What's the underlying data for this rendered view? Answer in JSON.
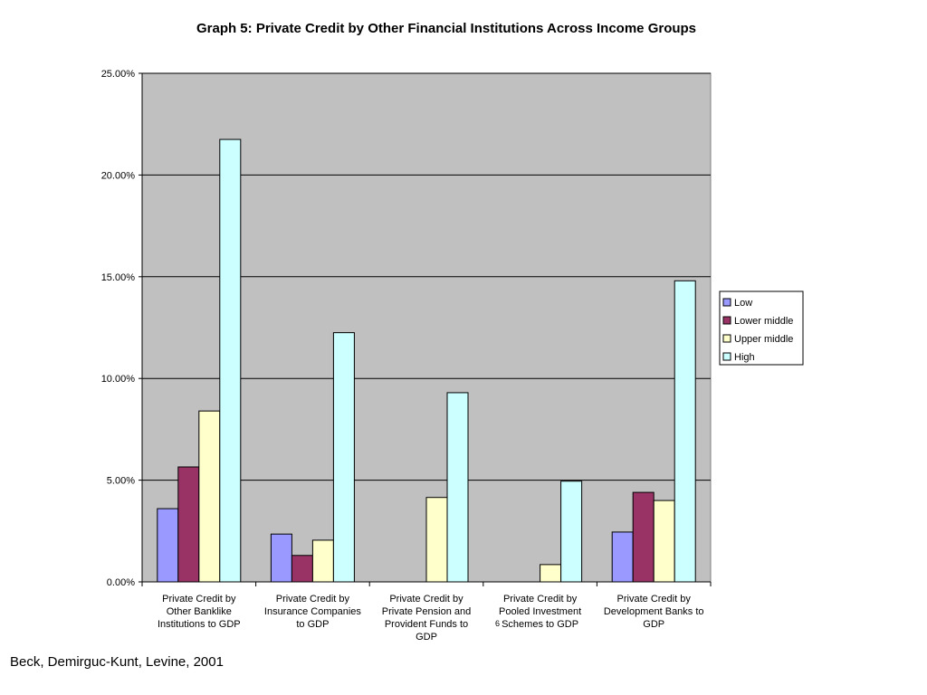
{
  "source_note": "Beck, Demirguc-Kunt, Levine, 2001",
  "stray_mark": "6",
  "chart_data": {
    "type": "bar",
    "title": "Graph 5: Private Credit by Other Financial Institutions Across Income Groups",
    "xlabel": "",
    "ylabel": "",
    "ylim": [
      0,
      25
    ],
    "yticks": [
      "0.00%",
      "5.00%",
      "10.00%",
      "15.00%",
      "20.00%",
      "25.00%"
    ],
    "ytick_values": [
      0,
      5,
      10,
      15,
      20,
      25
    ],
    "grid": true,
    "legend_position": "right",
    "plot_background": "#c0c0c0",
    "categories": [
      [
        "Private Credit by",
        "Other Banklike",
        "Institutions to GDP"
      ],
      [
        "Private Credit by",
        "Insurance Companies",
        "to GDP"
      ],
      [
        "Private Credit by",
        "Private Pension and",
        "Provident Funds to",
        "GDP"
      ],
      [
        "Private Credit by",
        "Pooled Investment",
        "Schemes to GDP"
      ],
      [
        "Private Credit by",
        "Development Banks to",
        "GDP"
      ]
    ],
    "series": [
      {
        "name": "Low",
        "color": "#9999ff",
        "values": [
          3.6,
          2.35,
          null,
          null,
          2.45
        ]
      },
      {
        "name": "Lower middle",
        "color": "#993366",
        "values": [
          5.65,
          1.3,
          null,
          null,
          4.4
        ]
      },
      {
        "name": "Upper middle",
        "color": "#ffffcc",
        "values": [
          8.4,
          2.05,
          4.15,
          0.85,
          4.0
        ]
      },
      {
        "name": "High",
        "color": "#ccffff",
        "values": [
          21.75,
          12.25,
          9.3,
          4.95,
          14.8
        ]
      }
    ]
  }
}
